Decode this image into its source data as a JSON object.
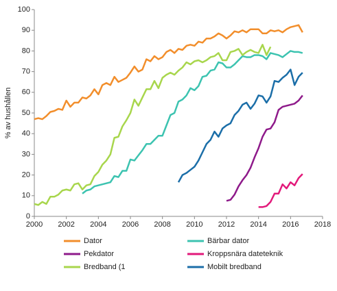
{
  "chart_data": {
    "type": "line",
    "y_label": "% av hushållen",
    "x": [
      2000,
      2000.25,
      2000.5,
      2000.75,
      2001,
      2001.25,
      2001.5,
      2001.75,
      2002,
      2002.25,
      2002.5,
      2002.75,
      2003,
      2003.25,
      2003.5,
      2003.75,
      2004,
      2004.25,
      2004.5,
      2004.75,
      2005,
      2005.25,
      2005.5,
      2005.75,
      2006,
      2006.25,
      2006.5,
      2006.75,
      2007,
      2007.25,
      2007.5,
      2007.75,
      2008,
      2008.25,
      2008.5,
      2008.75,
      2009,
      2009.25,
      2009.5,
      2009.75,
      2010,
      2010.25,
      2010.5,
      2010.75,
      2011,
      2011.25,
      2011.5,
      2011.75,
      2012,
      2012.25,
      2012.5,
      2012.75,
      2013,
      2013.25,
      2013.5,
      2013.75,
      2014,
      2014.25,
      2014.5,
      2014.75,
      2015,
      2015.25,
      2015.5,
      2015.75,
      2016,
      2016.25,
      2016.5,
      2016.75
    ],
    "series": [
      {
        "name": "Dator",
        "color": "#f28e2b",
        "values": [
          47,
          47.5,
          47,
          48.5,
          50.5,
          51,
          52,
          51.5,
          56,
          53,
          55,
          55,
          57.5,
          57,
          58.5,
          61.5,
          59,
          63.5,
          64.5,
          63.5,
          67.5,
          65,
          66,
          67,
          69.5,
          72.5,
          70,
          71,
          76,
          75,
          77.5,
          76,
          77,
          79.5,
          80.5,
          79,
          81,
          80.5,
          82.5,
          83,
          82.5,
          84.5,
          84,
          86,
          86,
          87,
          88.5,
          87.5,
          86,
          87.5,
          89.5,
          89,
          90,
          89,
          90.5,
          90.5,
          90.5,
          88.5,
          88.5,
          90,
          89.5,
          90,
          89,
          90.5,
          91.5,
          92,
          92.5,
          89
        ]
      },
      {
        "name": "Bärbar dator",
        "color": "#3cc3b0",
        "values": [
          null,
          null,
          null,
          null,
          null,
          null,
          null,
          null,
          null,
          null,
          null,
          null,
          11,
          12.5,
          13,
          14.5,
          15,
          15.5,
          16,
          16.5,
          19.5,
          19,
          22,
          22,
          27.5,
          27,
          29.5,
          32,
          35,
          35,
          37,
          39,
          39,
          44,
          49,
          50,
          55.5,
          56.5,
          58.5,
          62,
          61,
          63,
          67.5,
          68,
          70.5,
          71,
          74.5,
          74,
          72,
          72,
          73.5,
          75.5,
          77.5,
          77,
          77,
          78,
          78,
          77.5,
          76,
          79,
          78.5,
          78,
          77,
          78.5,
          80,
          79.5,
          79.5,
          79
        ]
      },
      {
        "name": "Pekdator",
        "color": "#8e1a8a",
        "values": [
          null,
          null,
          null,
          null,
          null,
          null,
          null,
          null,
          null,
          null,
          null,
          null,
          null,
          null,
          null,
          null,
          null,
          null,
          null,
          null,
          null,
          null,
          null,
          null,
          null,
          null,
          null,
          null,
          null,
          null,
          null,
          null,
          null,
          null,
          null,
          null,
          null,
          null,
          null,
          null,
          null,
          null,
          null,
          null,
          null,
          null,
          null,
          null,
          7.5,
          8,
          10.5,
          14.5,
          17.5,
          20,
          23.5,
          28.5,
          33,
          38.5,
          42,
          42.5,
          45.5,
          51.5,
          53,
          53.5,
          54,
          54.5,
          56,
          58.5
        ]
      },
      {
        "name": "Kroppsnära dateteknik",
        "color": "#e2197a",
        "values": [
          null,
          null,
          null,
          null,
          null,
          null,
          null,
          null,
          null,
          null,
          null,
          null,
          null,
          null,
          null,
          null,
          null,
          null,
          null,
          null,
          null,
          null,
          null,
          null,
          null,
          null,
          null,
          null,
          null,
          null,
          null,
          null,
          null,
          null,
          null,
          null,
          null,
          null,
          null,
          null,
          null,
          null,
          null,
          null,
          null,
          null,
          null,
          null,
          null,
          null,
          null,
          null,
          null,
          null,
          null,
          null,
          4.5,
          4.5,
          5,
          7,
          11,
          11,
          15.5,
          13.5,
          16.5,
          15,
          18.5,
          20.5
        ]
      },
      {
        "name": "Bredband (1",
        "color": "#a8d64c",
        "values": [
          6,
          5.5,
          7,
          6,
          9.5,
          9.5,
          10.5,
          12.5,
          13,
          12.5,
          15.5,
          16,
          13,
          15,
          15.5,
          19.5,
          21.5,
          25,
          27,
          30,
          38,
          38.5,
          43.5,
          46.5,
          50,
          56.5,
          53.5,
          57.5,
          61.5,
          61.5,
          65.5,
          62,
          67,
          68.5,
          69.5,
          68.5,
          70.5,
          72,
          74.5,
          73.5,
          75,
          75.5,
          74.5,
          75.5,
          77,
          77.5,
          79,
          75.5,
          75.5,
          79.5,
          80,
          81,
          78,
          79.5,
          80.5,
          79.5,
          79,
          83,
          78,
          82,
          null,
          null,
          null,
          null,
          null,
          null,
          null,
          null
        ]
      },
      {
        "name": "Mobilt bredband",
        "color": "#1b6ea8",
        "values": [
          null,
          null,
          null,
          null,
          null,
          null,
          null,
          null,
          null,
          null,
          null,
          null,
          null,
          null,
          null,
          null,
          null,
          null,
          null,
          null,
          null,
          null,
          null,
          null,
          null,
          null,
          null,
          null,
          null,
          null,
          null,
          null,
          null,
          null,
          null,
          null,
          16.5,
          20,
          21,
          22.5,
          24,
          27,
          31,
          35,
          37,
          41,
          38.5,
          42.5,
          44,
          45,
          49,
          51,
          54,
          55,
          52,
          54.5,
          58.5,
          58,
          55,
          58,
          65.5,
          65,
          67,
          68.5,
          71,
          63.5,
          67.5,
          69.5
        ]
      }
    ],
    "xlim": [
      2000,
      2018
    ],
    "xticks": [
      2000,
      2002,
      2004,
      2006,
      2008,
      2010,
      2012,
      2014,
      2016,
      2018
    ],
    "ylim": [
      0,
      100
    ],
    "yticks": [
      0,
      10,
      20,
      30,
      40,
      50,
      60,
      70,
      80,
      90,
      100
    ],
    "grid": false,
    "legend": "bottom"
  }
}
